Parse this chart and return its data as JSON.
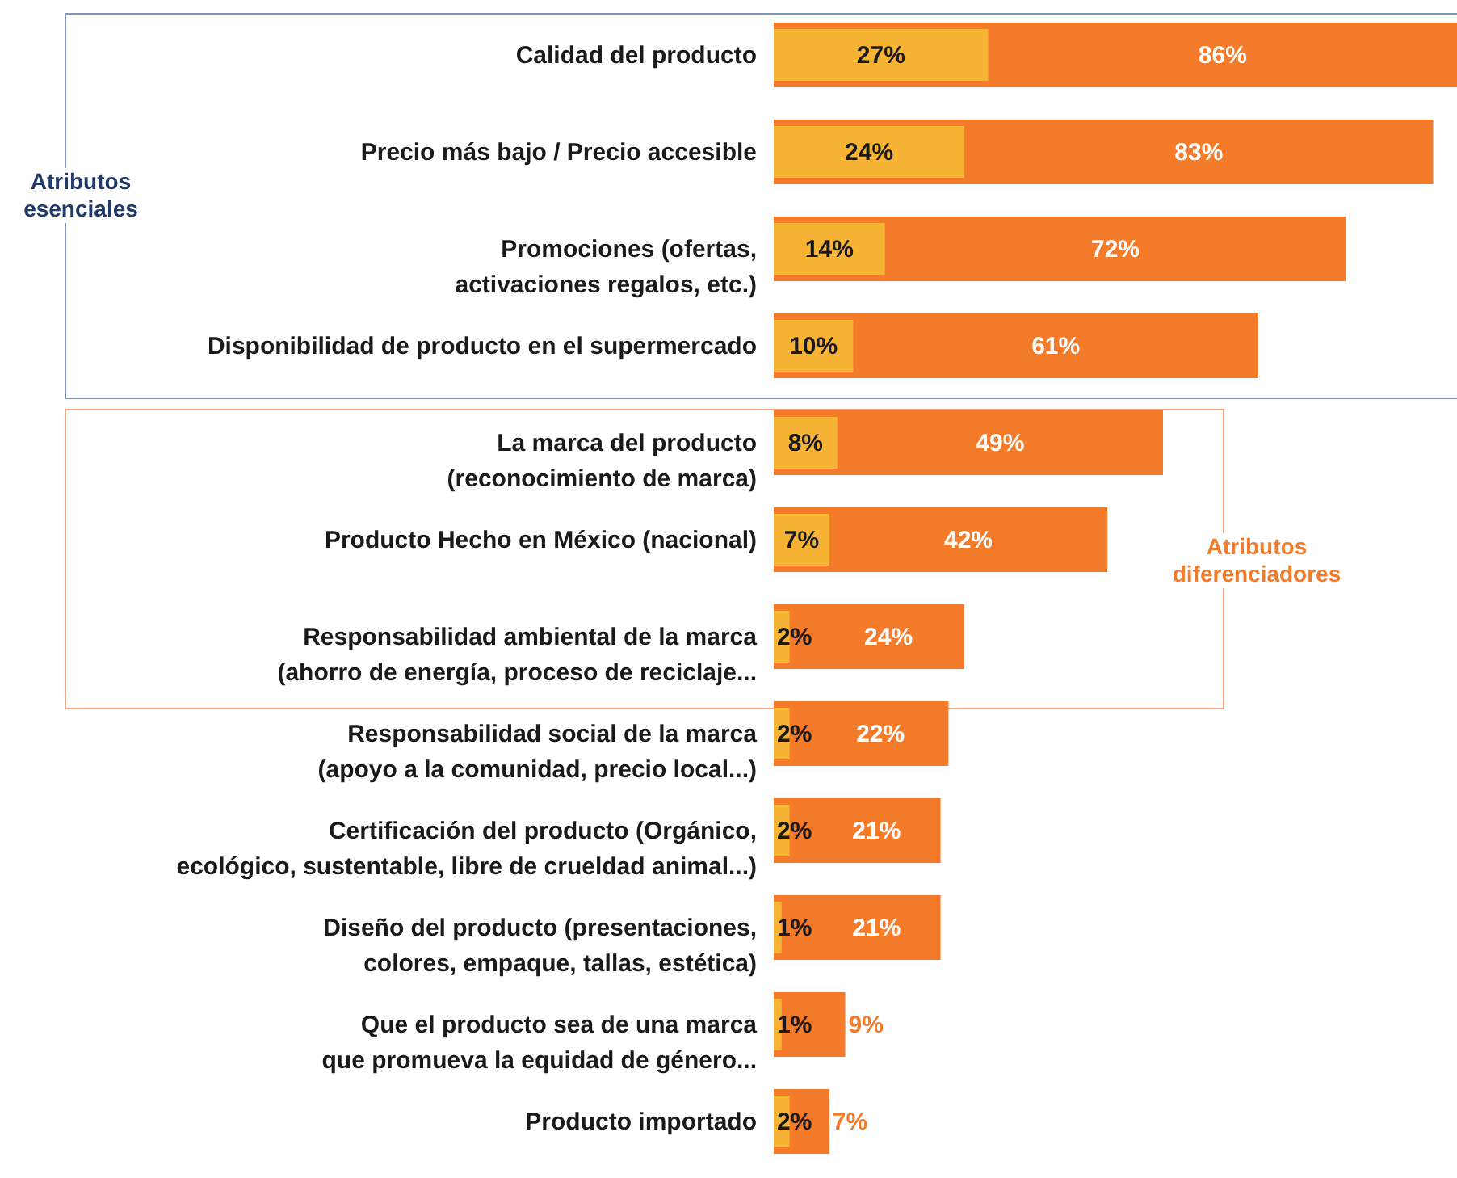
{
  "chart_data": {
    "type": "bar",
    "orientation": "horizontal",
    "categories": [
      "Calidad del producto",
      "Precio más bajo / Precio accesible",
      "Promociones (ofertas,\nactivaciones regalos, etc.)",
      "Disponibilidad de producto en el supermercado",
      "La marca del producto\n(reconocimiento de marca)",
      "Producto Hecho en México (nacional)",
      "Responsabilidad ambiental de la marca\n(ahorro de energía, proceso de reciclaje...",
      "Responsabilidad social de la marca\n(apoyo a la comunidad, precio local...)",
      "Certificación del producto (Orgánico,\necológico, sustentable, libre de crueldad animal...)",
      "Diseño del producto (presentaciones,\ncolores, empaque, tallas, estética)",
      "Que el producto sea de una marca\nque promueva la equidad de género...",
      "Producto importado"
    ],
    "series": [
      {
        "color": "#f47b2a",
        "values": [
          86,
          83,
          72,
          61,
          49,
          42,
          24,
          22,
          21,
          21,
          9,
          7
        ],
        "value_labels": [
          "86%",
          "83%",
          "72%",
          "61%",
          "49%",
          "42%",
          "24%",
          "22%",
          "21%",
          "21%",
          "9%",
          "7%"
        ]
      },
      {
        "color": "#f6b334",
        "values": [
          27,
          24,
          14,
          10,
          8,
          7,
          2,
          2,
          2,
          1,
          1,
          2
        ],
        "value_labels": [
          "27%",
          "24%",
          "14%",
          "10%",
          "8%",
          "7%",
          "2%",
          "2%",
          "2%",
          "1%",
          "1%",
          "2%"
        ]
      }
    ],
    "annotations": [
      "Atributos esenciales",
      "Atributos diferenciadores"
    ]
  }
}
